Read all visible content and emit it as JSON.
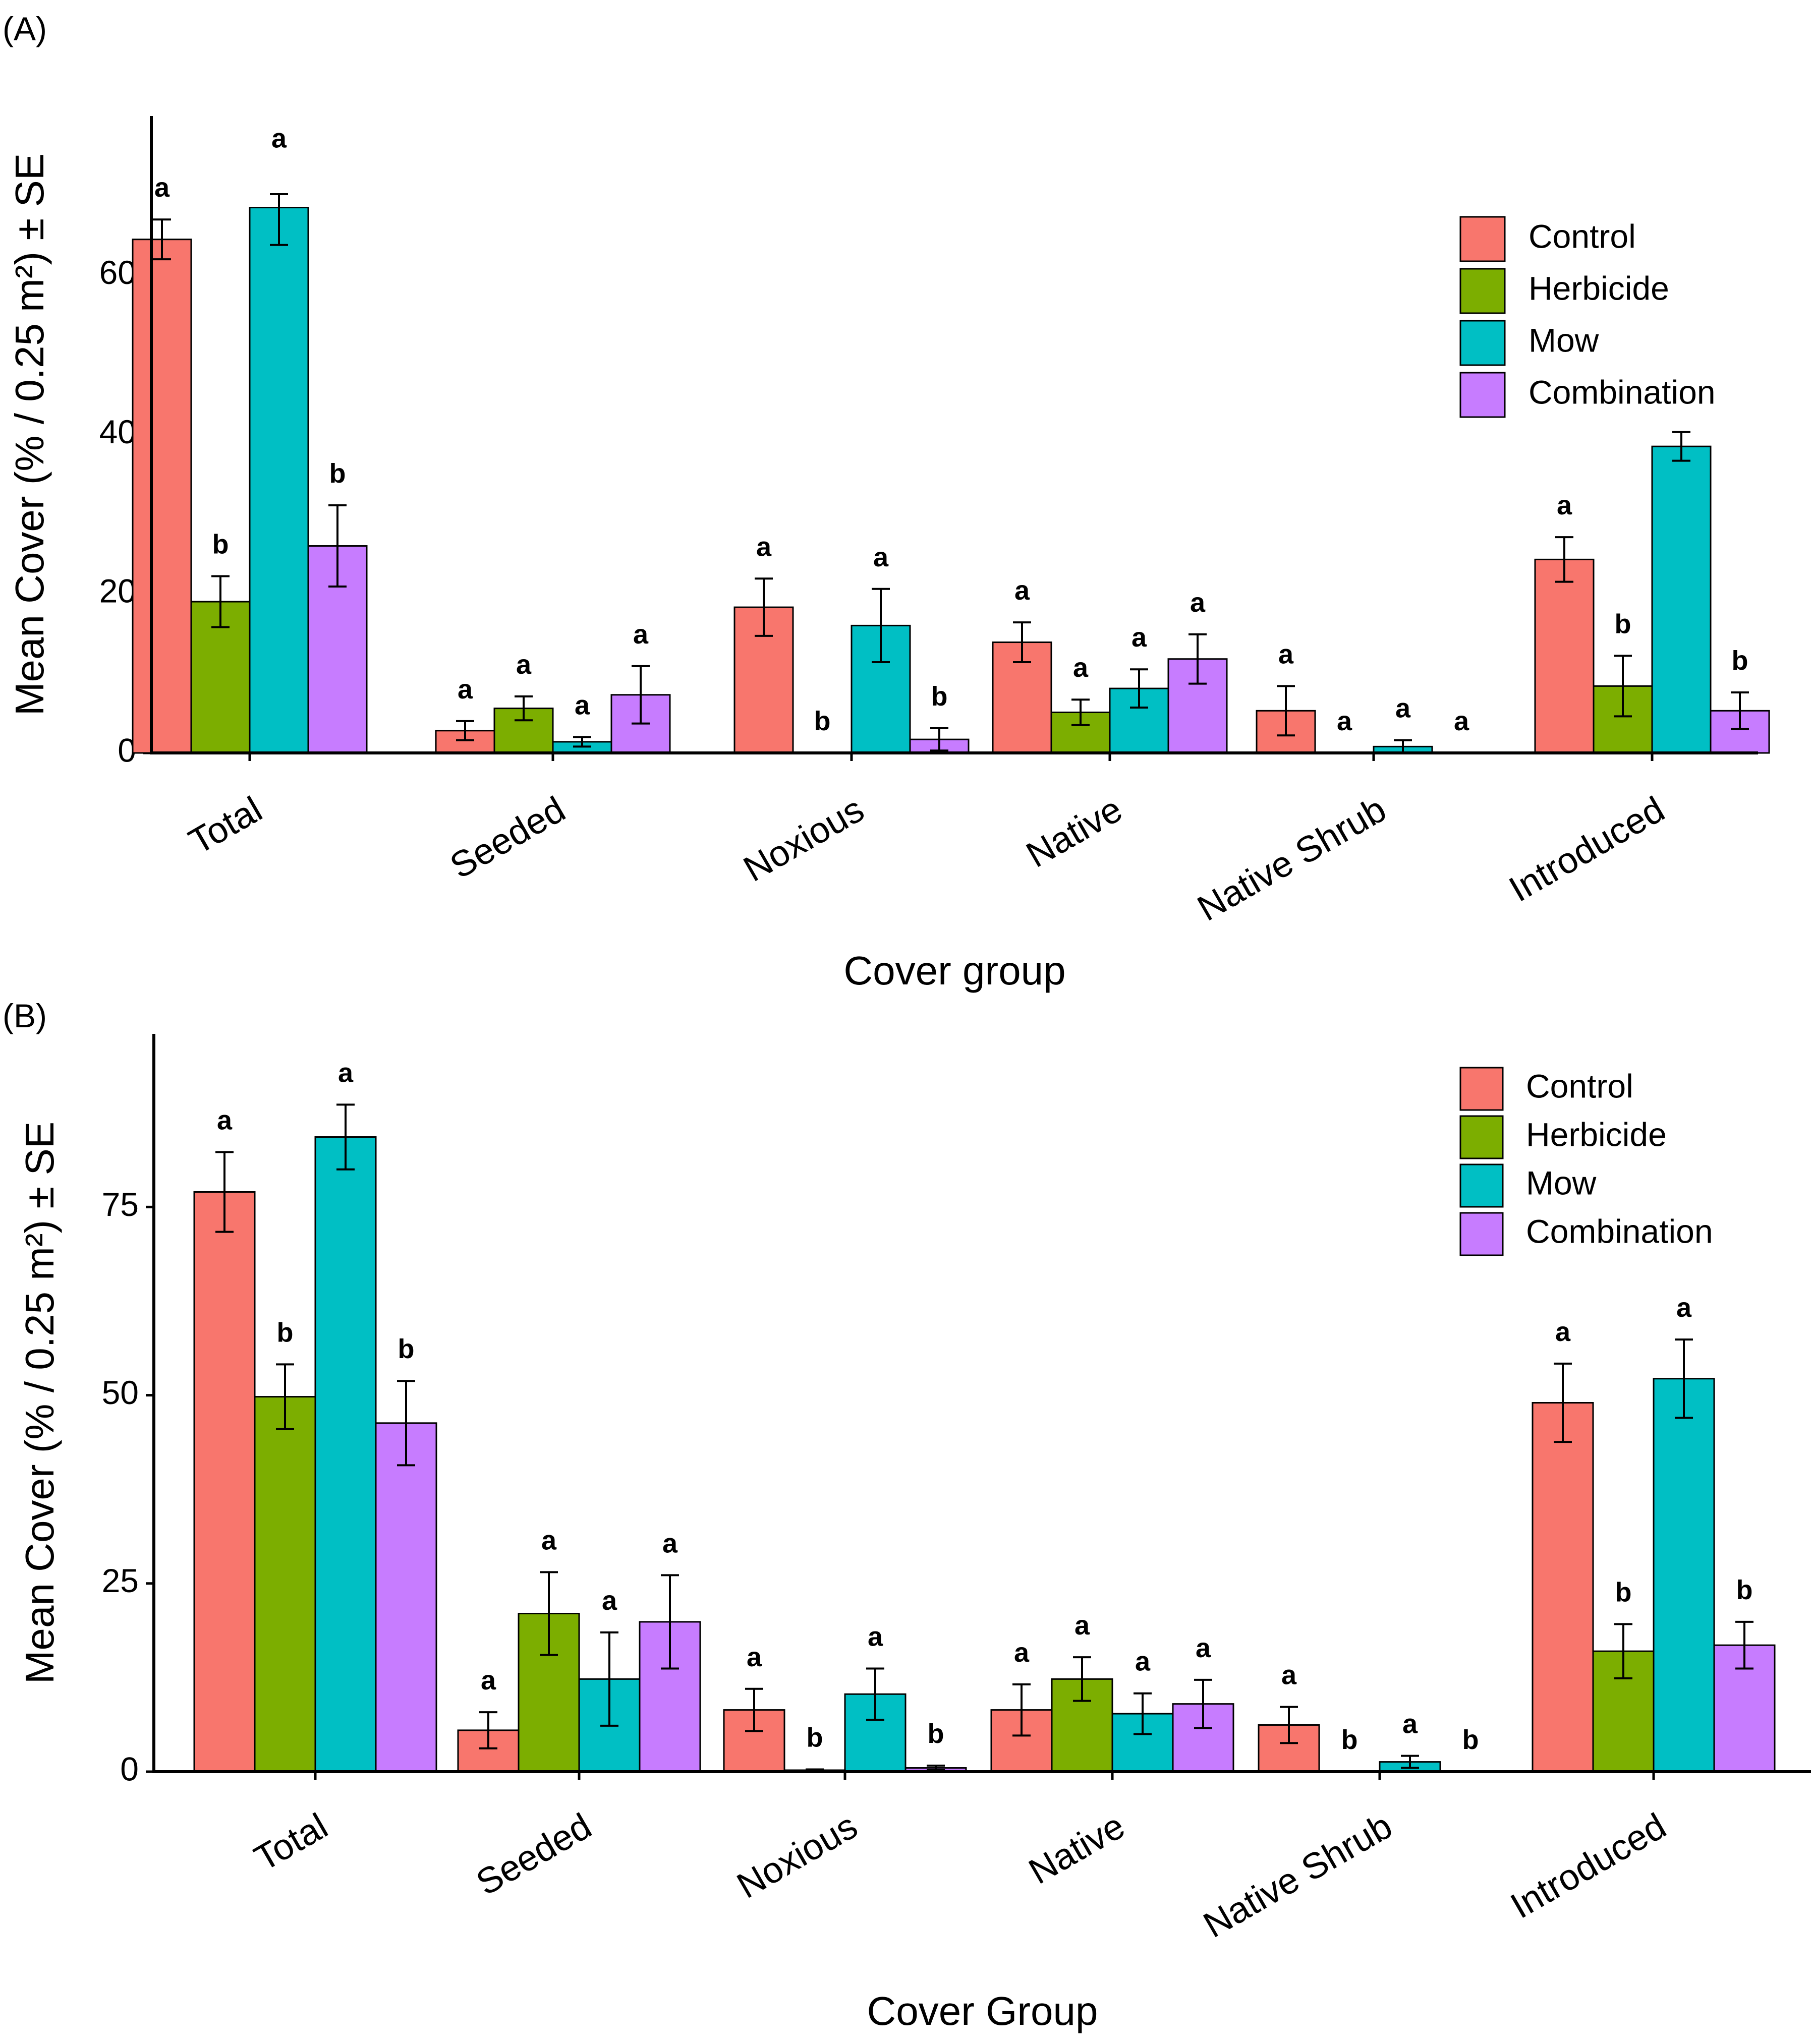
{
  "chart_data": [
    {
      "panel_label": "(A)",
      "type": "bar",
      "xlabel": "Cover group",
      "ylabel": "Mean Cover (% / 0.25 m²) ± SE",
      "ylim": [
        0,
        80
      ],
      "yticks": [
        "0",
        "20",
        "40",
        "60"
      ],
      "ytick_values": [
        0,
        20,
        40,
        60
      ],
      "categories": [
        "Total",
        "Seeded",
        "Noxious",
        "Native",
        "Native Shrub",
        "Introduced"
      ],
      "legend": {
        "position": "top-right",
        "entries": [
          "Control",
          "Herbicide",
          "Mow",
          "Combination"
        ]
      },
      "series": [
        {
          "name": "Control",
          "color": "#F8766D",
          "values": [
            64.5,
            2.8,
            18.3,
            13.9,
            5.3,
            24.3
          ],
          "se": [
            2.5,
            1.2,
            3.6,
            2.5,
            3.1,
            2.8
          ],
          "letters": [
            "a",
            "a",
            "a",
            "a",
            "a",
            "a"
          ]
        },
        {
          "name": "Herbicide",
          "color": "#7CAE00",
          "values": [
            19.0,
            5.6,
            0,
            5.1,
            0,
            8.4
          ],
          "se": [
            3.2,
            1.5,
            0,
            1.6,
            0,
            3.8
          ],
          "letters": [
            "b",
            "a",
            "b",
            "a",
            "a",
            "b"
          ]
        },
        {
          "name": "Mow",
          "color": "#00BFC4",
          "values": [
            68.5,
            1.4,
            16.0,
            8.1,
            0.8,
            38.5
          ],
          "se": [
            4.7,
            0.6,
            4.6,
            2.4,
            0.8,
            1.8
          ],
          "letters": [
            "a",
            "a",
            "a",
            "a",
            "a",
            ""
          ]
        },
        {
          "name": "Combination",
          "color": "#C77CFF",
          "values": [
            26.0,
            7.3,
            1.7,
            11.8,
            0,
            5.3
          ],
          "se": [
            5.1,
            3.6,
            1.4,
            3.1,
            0,
            2.3
          ],
          "letters": [
            "b",
            "a",
            "b",
            "a",
            "a",
            "b"
          ]
        }
      ]
    },
    {
      "panel_label": "(B)",
      "type": "bar",
      "xlabel": "Cover Group",
      "ylabel": "Mean Cover (% / 0.25 m²) ± SE",
      "ylim": [
        0,
        98
      ],
      "yticks": [
        "0",
        "25",
        "50",
        "75"
      ],
      "ytick_values": [
        0,
        25,
        50,
        75
      ],
      "categories": [
        "Total",
        "Seeded",
        "Noxious",
        "Native",
        "Native Shrub",
        "Introduced"
      ],
      "legend": {
        "position": "top-right",
        "entries": [
          "Control",
          "Herbicide",
          "Mow",
          "Combination"
        ]
      },
      "series": [
        {
          "name": "Control",
          "color": "#F8766D",
          "values": [
            77.0,
            5.5,
            8.2,
            8.2,
            6.2,
            49.0
          ],
          "se": [
            5.3,
            2.4,
            2.8,
            3.4,
            2.4,
            5.2
          ],
          "letters": [
            "a",
            "a",
            "a",
            "a",
            "a",
            "a"
          ]
        },
        {
          "name": "Herbicide",
          "color": "#7CAE00",
          "values": [
            49.8,
            21.0,
            0.2,
            12.3,
            0,
            16.0
          ],
          "se": [
            4.3,
            5.5,
            0.1,
            2.9,
            0,
            3.6
          ],
          "letters": [
            "b",
            "a",
            "b",
            "a",
            "b",
            "b"
          ]
        },
        {
          "name": "Mow",
          "color": "#00BFC4",
          "values": [
            84.3,
            12.3,
            10.3,
            7.7,
            1.3,
            52.2
          ],
          "se": [
            4.3,
            6.2,
            3.4,
            2.7,
            0.8,
            5.2
          ],
          "letters": [
            "a",
            "a",
            "a",
            "a",
            "a",
            "a"
          ]
        },
        {
          "name": "Combination",
          "color": "#C77CFF",
          "values": [
            46.3,
            19.9,
            0.5,
            9.0,
            0,
            16.8
          ],
          "se": [
            5.6,
            6.2,
            0.3,
            3.2,
            0,
            3.1
          ],
          "letters": [
            "b",
            "a",
            "b",
            "a",
            "b",
            "b"
          ]
        }
      ]
    }
  ]
}
